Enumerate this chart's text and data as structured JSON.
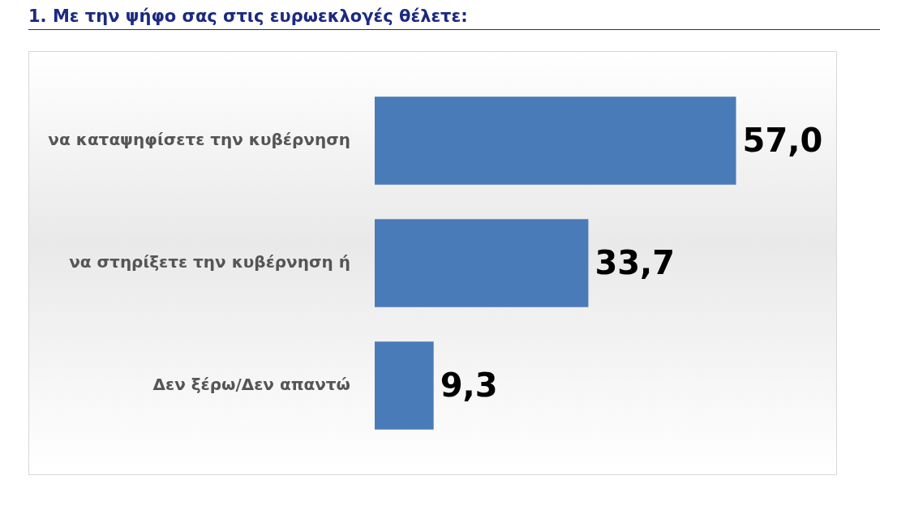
{
  "chart_data": {
    "type": "bar",
    "orientation": "horizontal",
    "title": "1. Με την ψήφο σας στις ευρωεκλογές θέλετε:",
    "categories": [
      "να καταψηφίσετε την κυβέρνηση",
      "να στηρίξετε την κυβέρνηση ή",
      "Δεν ξέρω/Δεν απαντώ"
    ],
    "values": [
      57.0,
      33.7,
      9.3
    ],
    "value_labels": [
      "57,0",
      "33,7",
      "9,3"
    ],
    "color": "#4a7bb9"
  }
}
